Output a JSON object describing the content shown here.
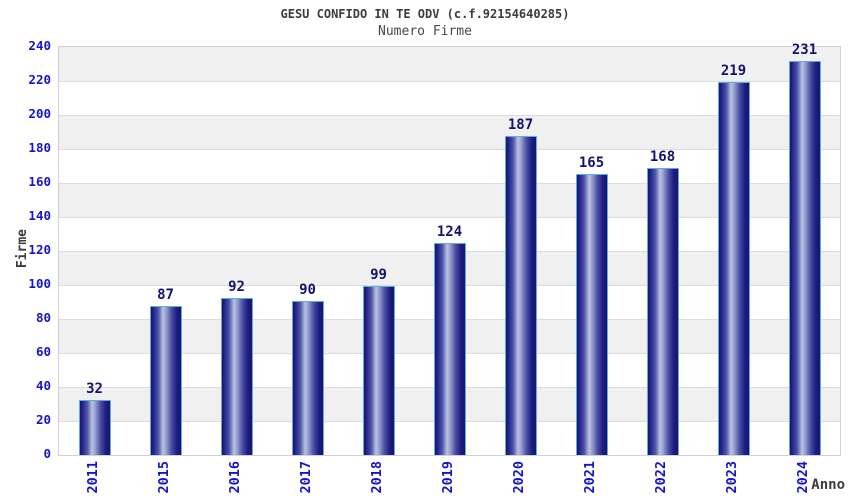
{
  "chart_data": {
    "type": "bar",
    "title": "GESU CONFIDO IN TE ODV (c.f.92154640285)",
    "subtitle": "Numero Firme",
    "xlabel": "Anno",
    "ylabel": "Firme",
    "categories": [
      "2011",
      "2015",
      "2016",
      "2017",
      "2018",
      "2019",
      "2020",
      "2021",
      "2022",
      "2023",
      "2024"
    ],
    "values": [
      32,
      87,
      92,
      90,
      99,
      124,
      187,
      165,
      168,
      219,
      231
    ],
    "ylim": [
      0,
      240
    ],
    "ytick_step": 20,
    "grid": "horizontal-lines-with-alternating-bands",
    "legend": "none",
    "colors": {
      "bar_dark": "#16166e",
      "bar_highlight": "#b9c1e2",
      "bar_border": "#63aadf",
      "tick_label": "#1414cc",
      "value_label": "#13136e",
      "title": "#3c3c3c",
      "subtitle": "#4a4a4a",
      "axis_label": "#3c3c3c",
      "band_gray": "#f0f0f0",
      "band_white": "#ffffff",
      "grid_line": "#dcdcdc",
      "plot_border": "#d0d0d0"
    }
  }
}
